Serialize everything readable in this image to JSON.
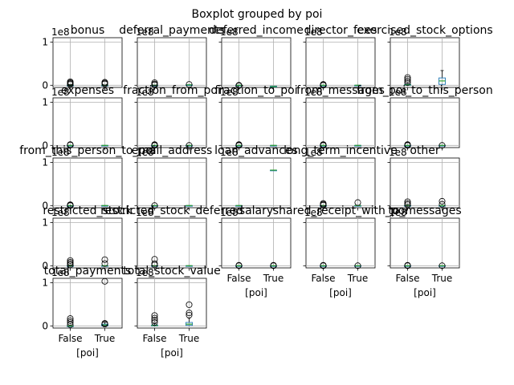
{
  "chart_data": {
    "type": "boxplot",
    "suptitle": "Boxplot grouped by poi",
    "groups": [
      "False",
      "True"
    ],
    "xlabel": "[poi]",
    "y_ticks": [
      "0",
      "1"
    ],
    "y_offset": "1e8",
    "ylim": [
      -0.05,
      1.1
    ],
    "grid": true,
    "subplots": [
      {
        "title": "bonus",
        "series": [
          {
            "group": "False",
            "median": 0.0,
            "q1": 0.0,
            "q3": 0.0,
            "whisker_low": 0.0,
            "whisker_high": 0.0,
            "outliers": [
              0.02,
              0.04,
              0.06,
              0.08
            ]
          },
          {
            "group": "True",
            "median": 0.0,
            "q1": 0.0,
            "q3": 0.0,
            "whisker_low": 0.0,
            "whisker_high": 0.0,
            "outliers": [
              0.03,
              0.05,
              0.07
            ]
          }
        ]
      },
      {
        "title": "deferral_payments",
        "series": [
          {
            "group": "False",
            "median": 0.0,
            "q1": 0.0,
            "q3": 0.0,
            "whisker_low": 0.0,
            "whisker_high": 0.0,
            "outliers": [
              0.01,
              0.03,
              0.06
            ]
          },
          {
            "group": "True",
            "median": 0.01,
            "q1": 0.0,
            "q3": 0.01,
            "whisker_low": 0.0,
            "whisker_high": 0.01,
            "outliers": [
              0.02
            ]
          }
        ]
      },
      {
        "title": "deferred_income",
        "series": [
          {
            "group": "False",
            "median": 0.0,
            "q1": 0.0,
            "q3": 0.0,
            "whisker_low": 0.0,
            "whisker_high": 0.0,
            "outliers": [
              0.0,
              -0.01
            ]
          },
          {
            "group": "True",
            "median": -0.03,
            "q1": -0.04,
            "q3": -0.02,
            "whisker_low": -0.04,
            "whisker_high": -0.02,
            "outliers": []
          }
        ]
      },
      {
        "title": "director_fees",
        "series": [
          {
            "group": "False",
            "median": 0.0,
            "q1": 0.0,
            "q3": 0.0,
            "whisker_low": 0.0,
            "whisker_high": 0.0,
            "outliers": [
              0.0,
              0.01,
              0.02
            ]
          },
          {
            "group": "True",
            "median": 0.0,
            "q1": 0.0,
            "q3": 0.0,
            "whisker_low": 0.0,
            "whisker_high": 0.0,
            "outliers": []
          }
        ]
      },
      {
        "title": "exercised_stock_options",
        "series": [
          {
            "group": "False",
            "median": 0.01,
            "q1": 0.0,
            "q3": 0.02,
            "whisker_low": 0.0,
            "whisker_high": 0.04,
            "outliers": [
              0.06,
              0.1,
              0.14,
              0.18
            ]
          },
          {
            "group": "True",
            "median": 0.1,
            "q1": 0.02,
            "q3": 0.17,
            "whisker_low": 0.0,
            "whisker_high": 0.34,
            "outliers": []
          }
        ]
      },
      {
        "title": "expenses",
        "series": [
          {
            "group": "False",
            "median": 0.0,
            "q1": 0.0,
            "q3": 0.0,
            "whisker_low": 0.0,
            "whisker_high": 0.0,
            "outliers": [
              0.01,
              0.02
            ]
          },
          {
            "group": "True",
            "median": 0.0,
            "q1": 0.0,
            "q3": 0.0,
            "whisker_low": 0.0,
            "whisker_high": 0.0,
            "outliers": []
          }
        ]
      },
      {
        "title": "fraction_from_poi",
        "series": [
          {
            "group": "False",
            "median": 0.0,
            "q1": 0.0,
            "q3": 0.0,
            "whisker_low": 0.0,
            "whisker_high": 0.0,
            "outliers": [
              0.0,
              0.01,
              0.02
            ]
          },
          {
            "group": "True",
            "median": 0.0,
            "q1": 0.0,
            "q3": 0.0,
            "whisker_low": 0.0,
            "whisker_high": 0.0,
            "outliers": [
              0.0
            ]
          }
        ]
      },
      {
        "title": "fraction_to_poi",
        "series": [
          {
            "group": "False",
            "median": 0.0,
            "q1": 0.0,
            "q3": 0.0,
            "whisker_low": 0.0,
            "whisker_high": 0.0,
            "outliers": [
              0.0,
              0.01,
              0.02
            ]
          },
          {
            "group": "True",
            "median": 0.0,
            "q1": 0.0,
            "q3": 0.0,
            "whisker_low": 0.0,
            "whisker_high": 0.0,
            "outliers": []
          }
        ]
      },
      {
        "title": "from_messages",
        "series": [
          {
            "group": "False",
            "median": 0.0,
            "q1": 0.0,
            "q3": 0.0,
            "whisker_low": 0.0,
            "whisker_high": 0.0,
            "outliers": [
              0.0,
              0.01,
              0.02
            ]
          },
          {
            "group": "True",
            "median": 0.0,
            "q1": 0.0,
            "q3": 0.0,
            "whisker_low": 0.0,
            "whisker_high": 0.0,
            "outliers": []
          }
        ]
      },
      {
        "title": "from_poi_to_this_person",
        "series": [
          {
            "group": "False",
            "median": 0.0,
            "q1": 0.0,
            "q3": 0.0,
            "whisker_low": 0.0,
            "whisker_high": 0.0,
            "outliers": [
              0.0,
              0.01,
              0.02
            ]
          },
          {
            "group": "True",
            "median": 0.0,
            "q1": 0.0,
            "q3": 0.0,
            "whisker_low": 0.0,
            "whisker_high": 0.0,
            "outliers": [
              0.0
            ]
          }
        ]
      },
      {
        "title": "from_this_person_to_poi",
        "series": [
          {
            "group": "False",
            "median": 0.0,
            "q1": 0.0,
            "q3": 0.0,
            "whisker_low": 0.0,
            "whisker_high": 0.0,
            "outliers": [
              0.0,
              0.01,
              0.02
            ]
          },
          {
            "group": "True",
            "median": 0.0,
            "q1": 0.0,
            "q3": 0.0,
            "whisker_low": 0.0,
            "whisker_high": 0.0,
            "outliers": []
          }
        ]
      },
      {
        "title": "email_address",
        "series": [
          {
            "group": "False",
            "median": 0.0,
            "q1": 0.0,
            "q3": 0.0,
            "whisker_low": 0.0,
            "whisker_high": 0.0,
            "outliers": [
              0.0
            ]
          },
          {
            "group": "True",
            "median": 0.0,
            "q1": 0.0,
            "q3": 0.0,
            "whisker_low": 0.0,
            "whisker_high": 0.0,
            "outliers": []
          }
        ]
      },
      {
        "title": "loan_advances",
        "series": [
          {
            "group": "False",
            "median": 0.0,
            "q1": 0.0,
            "q3": 0.0,
            "whisker_low": 0.0,
            "whisker_high": 0.0,
            "outliers": []
          },
          {
            "group": "True",
            "median": 0.82,
            "q1": 0.82,
            "q3": 0.82,
            "whisker_low": 0.82,
            "whisker_high": 0.82,
            "outliers": []
          }
        ]
      },
      {
        "title": "long_term_incentive",
        "series": [
          {
            "group": "False",
            "median": 0.0,
            "q1": 0.0,
            "q3": 0.0,
            "whisker_low": 0.0,
            "whisker_high": 0.0,
            "outliers": [
              0.01,
              0.03,
              0.05
            ]
          },
          {
            "group": "True",
            "median": 0.0,
            "q1": 0.0,
            "q3": 0.0,
            "whisker_low": 0.0,
            "whisker_high": 0.0,
            "outliers": [
              0.07
            ]
          }
        ]
      },
      {
        "title": "other",
        "series": [
          {
            "group": "False",
            "median": 0.0,
            "q1": 0.0,
            "q3": 0.0,
            "whisker_low": 0.0,
            "whisker_high": 0.0,
            "outliers": [
              0.02,
              0.05,
              0.09
            ]
          },
          {
            "group": "True",
            "median": 0.0,
            "q1": 0.0,
            "q3": 0.0,
            "whisker_low": 0.0,
            "whisker_high": 0.0,
            "outliers": [
              0.03,
              0.1
            ]
          }
        ]
      },
      {
        "title": "restricted_stock",
        "series": [
          {
            "group": "False",
            "median": 0.0,
            "q1": 0.0,
            "q3": 0.0,
            "whisker_low": 0.0,
            "whisker_high": 0.0,
            "outliers": [
              0.02,
              0.05,
              0.08,
              0.12
            ]
          },
          {
            "group": "True",
            "median": 0.0,
            "q1": 0.0,
            "q3": 0.0,
            "whisker_low": 0.0,
            "whisker_high": 0.0,
            "outliers": [
              0.05,
              0.14
            ]
          }
        ]
      },
      {
        "title": "restricted_stock_deferred",
        "series": [
          {
            "group": "False",
            "median": 0.0,
            "q1": 0.0,
            "q3": 0.0,
            "whisker_low": 0.0,
            "whisker_high": 0.0,
            "outliers": [
              0.02,
              0.05,
              0.15
            ]
          },
          {
            "group": "True",
            "median": 0.0,
            "q1": 0.0,
            "q3": 0.0,
            "whisker_low": 0.0,
            "whisker_high": 0.0,
            "outliers": []
          }
        ]
      },
      {
        "title": "salary",
        "series": [
          {
            "group": "False",
            "median": 0.0,
            "q1": 0.0,
            "q3": 0.0,
            "whisker_low": 0.0,
            "whisker_high": 0.0,
            "outliers": [
              0.0,
              0.01
            ]
          },
          {
            "group": "True",
            "median": 0.0,
            "q1": 0.0,
            "q3": 0.0,
            "whisker_low": 0.0,
            "whisker_high": 0.0,
            "outliers": [
              0.0,
              0.01
            ]
          }
        ]
      },
      {
        "title": "shared_receipt_with_poi",
        "series": [
          {
            "group": "False",
            "median": 0.0,
            "q1": 0.0,
            "q3": 0.0,
            "whisker_low": 0.0,
            "whisker_high": 0.0,
            "outliers": [
              0.0,
              0.01
            ]
          },
          {
            "group": "True",
            "median": 0.0,
            "q1": 0.0,
            "q3": 0.0,
            "whisker_low": 0.0,
            "whisker_high": 0.0,
            "outliers": [
              0.0
            ]
          }
        ]
      },
      {
        "title": "to_messages",
        "series": [
          {
            "group": "False",
            "median": 0.0,
            "q1": 0.0,
            "q3": 0.0,
            "whisker_low": 0.0,
            "whisker_high": 0.0,
            "outliers": [
              0.0,
              0.01
            ]
          },
          {
            "group": "True",
            "median": 0.0,
            "q1": 0.0,
            "q3": 0.0,
            "whisker_low": 0.0,
            "whisker_high": 0.0,
            "outliers": [
              0.0
            ]
          }
        ]
      },
      {
        "title": "total_payments",
        "series": [
          {
            "group": "False",
            "median": 0.0,
            "q1": 0.0,
            "q3": 0.0,
            "whisker_low": 0.0,
            "whisker_high": 0.0,
            "outliers": [
              0.03,
              0.08,
              0.12,
              0.17
            ]
          },
          {
            "group": "True",
            "median": 0.02,
            "q1": 0.0,
            "q3": 0.04,
            "whisker_low": 0.0,
            "whisker_high": 0.08,
            "outliers": [
              0.04,
              0.06,
              1.03
            ]
          }
        ]
      },
      {
        "title": "total_stock_value",
        "series": [
          {
            "group": "False",
            "median": 0.01,
            "q1": 0.0,
            "q3": 0.02,
            "whisker_low": 0.0,
            "whisker_high": 0.05,
            "outliers": [
              0.08,
              0.13,
              0.18,
              0.24
            ]
          },
          {
            "group": "True",
            "median": 0.04,
            "q1": 0.01,
            "q3": 0.08,
            "whisker_low": 0.0,
            "whisker_high": 0.18,
            "outliers": [
              0.25,
              0.3,
              0.49
            ]
          }
        ]
      }
    ]
  },
  "colors": {
    "box": "#1f77b4",
    "median": "#2ca02c",
    "grid": "#b0b0b0",
    "axes": "#000000"
  }
}
